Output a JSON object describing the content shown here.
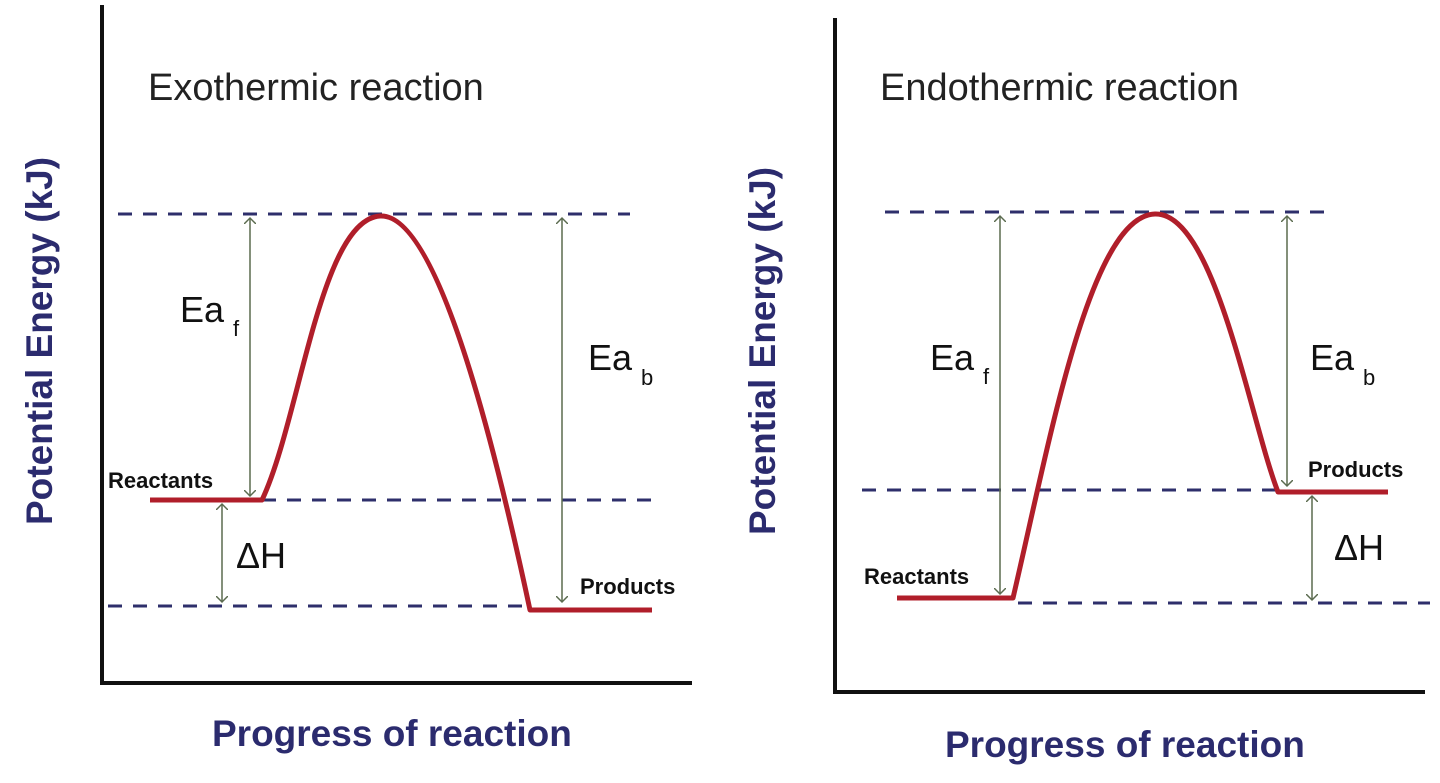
{
  "colors": {
    "curve": "#b01e2a",
    "dashed_lines": "#2e2f6b",
    "axis_labels": "#2b2b6e",
    "arrows": "#5b6b4f"
  },
  "left_panel": {
    "title": "Exothermic reaction",
    "y_axis_label": "Potential Energy (kJ)",
    "x_axis_label": "Progress of reaction",
    "reactants_label": "Reactants",
    "products_label": "Products",
    "ea_forward": "Ea",
    "ea_forward_sub": "f",
    "ea_backward": "Ea",
    "ea_backward_sub": "b",
    "delta_h": "ΔH"
  },
  "right_panel": {
    "title": "Endothermic reaction",
    "y_axis_label": "Potential Energy (kJ)",
    "x_axis_label": "Progress of reaction",
    "reactants_label": "Reactants",
    "products_label": "Products",
    "ea_forward": "Ea",
    "ea_forward_sub": "f",
    "ea_backward": "Ea",
    "ea_backward_sub": "b",
    "delta_h": "ΔH"
  }
}
